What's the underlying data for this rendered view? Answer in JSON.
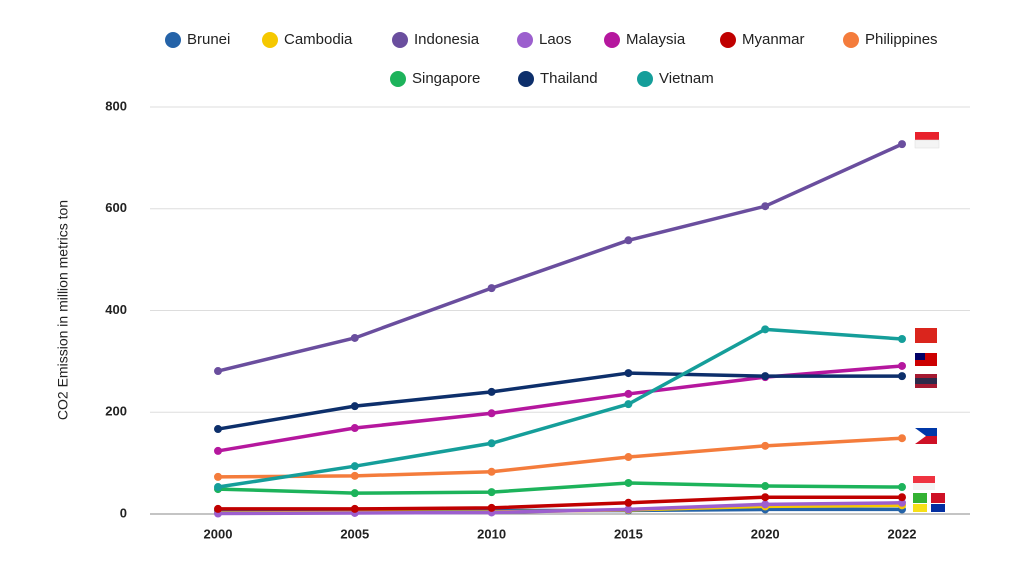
{
  "chart_data": {
    "type": "line",
    "y_label": "CO2 Emission in million metrics ton",
    "categories": [
      "2000",
      "2005",
      "2010",
      "2015",
      "2020",
      "2022"
    ],
    "ylim": [
      0,
      800
    ],
    "yticks": [
      0,
      200,
      400,
      600,
      800
    ],
    "grid": true,
    "series": [
      {
        "name": "Brunei",
        "color": "#2563a8",
        "values": [
          6,
          6,
          7,
          7,
          9,
          9
        ]
      },
      {
        "name": "Cambodia",
        "color": "#f5c800",
        "values": [
          2,
          3,
          4,
          8,
          15,
          17
        ]
      },
      {
        "name": "Indonesia",
        "color": "#6a4e9e",
        "values": [
          281,
          346,
          444,
          538,
          605,
          727
        ]
      },
      {
        "name": "Laos",
        "color": "#9c5fce",
        "values": [
          1,
          2,
          3,
          9,
          19,
          22
        ]
      },
      {
        "name": "Malaysia",
        "color": "#b5179e",
        "values": [
          124,
          169,
          198,
          236,
          269,
          291
        ]
      },
      {
        "name": "Myanmar",
        "color": "#c00000",
        "values": [
          10,
          10,
          12,
          22,
          33,
          33
        ]
      },
      {
        "name": "Philippines",
        "color": "#f47c3c",
        "values": [
          73,
          75,
          83,
          112,
          134,
          149
        ]
      },
      {
        "name": "Singapore",
        "color": "#1db35b",
        "values": [
          49,
          41,
          43,
          61,
          55,
          53
        ]
      },
      {
        "name": "Thailand",
        "color": "#0d2f6b",
        "values": [
          167,
          212,
          240,
          277,
          271,
          271
        ]
      },
      {
        "name": "Vietnam",
        "color": "#159e9a",
        "values": [
          53,
          94,
          139,
          216,
          363,
          344
        ]
      }
    ]
  }
}
